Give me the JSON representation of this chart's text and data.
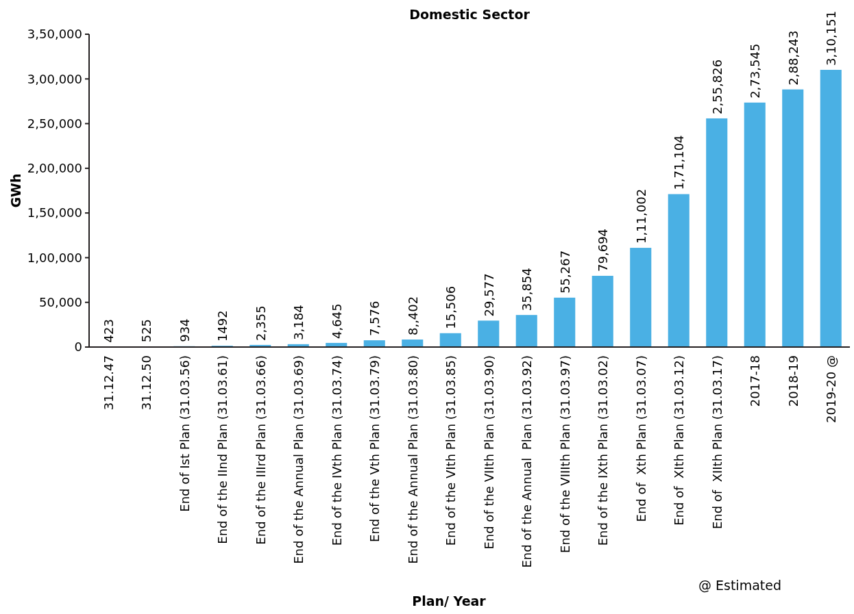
{
  "chart_data": {
    "type": "bar",
    "title": "Domestic Sector",
    "xlabel": "Plan/ Year",
    "ylabel": "GWh",
    "categories": [
      "31.12.47",
      "31.12.50",
      "End of Ist Plan (31.03.56)",
      "End of the IInd Plan (31.03.61)",
      "End of the IIIrd Plan (31.03.66)",
      "End of the Annual Plan (31.03.69)",
      "End of the IVth Plan (31.03.74)",
      "End of the Vth Plan (31.03.79)",
      "End of the Annual Plan (31.03.80)",
      "End of the VIth Plan (31.03.85)",
      "End of the VIIth Plan (31.03.90)",
      "End of the Annual  Plan (31.03.92)",
      "End of the VIIIth Plan (31.03.97)",
      "End of the IXth Plan (31.03.02)",
      "End of  Xth Plan (31.03.07)",
      "End of  XIth Plan (31.03.12)",
      "End of  XIIth Plan (31.03.17)",
      "2017-18",
      "2018-19",
      "2019-20 @"
    ],
    "values": [
      423,
      525,
      934,
      1492,
      2355,
      3184,
      4645,
      7576,
      8402,
      15506,
      29577,
      35854,
      55267,
      79694,
      111002,
      171104,
      255826,
      273545,
      288243,
      310151
    ],
    "value_labels": [
      "423",
      "525",
      "934",
      "1492",
      "2,355",
      "3,184",
      "4,645",
      "7,576",
      "8,,402",
      "15,506",
      "29,577",
      "35,854",
      "55,267",
      "79,694",
      "1,11,002",
      "1,71,104",
      "2,55,826",
      "2,73,545",
      "2,88,243",
      "3,10,151"
    ],
    "color": "#4ab0e4",
    "ylim": [
      0,
      350000
    ],
    "yticks": [
      0,
      {
        "value": 50000,
        "label": "50,000"
      },
      {
        "value": 100000,
        "label": "1,00,000"
      },
      {
        "value": 150000,
        "label": "1,50,000"
      },
      {
        "value": 200000,
        "label": "2,00,000"
      },
      {
        "value": 250000,
        "label": "2,50,000"
      },
      {
        "value": 300000,
        "label": "3,00,000"
      },
      {
        "value": 350000,
        "label": "3,50,000"
      }
    ],
    "annotations": [
      "@ Estimated"
    ]
  }
}
